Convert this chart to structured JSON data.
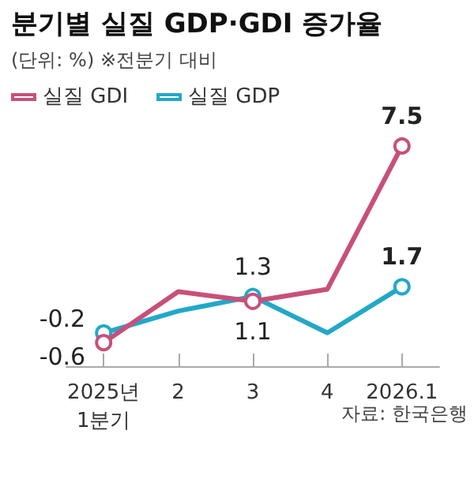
{
  "chart_data": {
    "type": "line",
    "title": "분기별 실질 GDP·GDI 증가율",
    "subtitle": "(단위: %) ※전분기 대비",
    "categories": [
      "2025년\n1분기",
      "2",
      "3",
      "4",
      "2026.1"
    ],
    "series": [
      {
        "name": "실질 GDI",
        "color": "#c8507a",
        "values": [
          -0.6,
          1.5,
          1.1,
          1.6,
          7.5
        ],
        "value_labels": [
          "-0.6",
          null,
          "1.1",
          null,
          "7.5"
        ]
      },
      {
        "name": "실질 GDP",
        "color": "#22a8c8",
        "values": [
          -0.2,
          0.7,
          1.3,
          -0.2,
          1.7
        ],
        "value_labels": [
          "-0.2",
          null,
          "1.3",
          null,
          "1.7"
        ]
      }
    ],
    "legend": "top left",
    "grid": false,
    "marker": "circle",
    "line_style": "solid",
    "annotations": [
      "자료: 한국은행"
    ]
  }
}
